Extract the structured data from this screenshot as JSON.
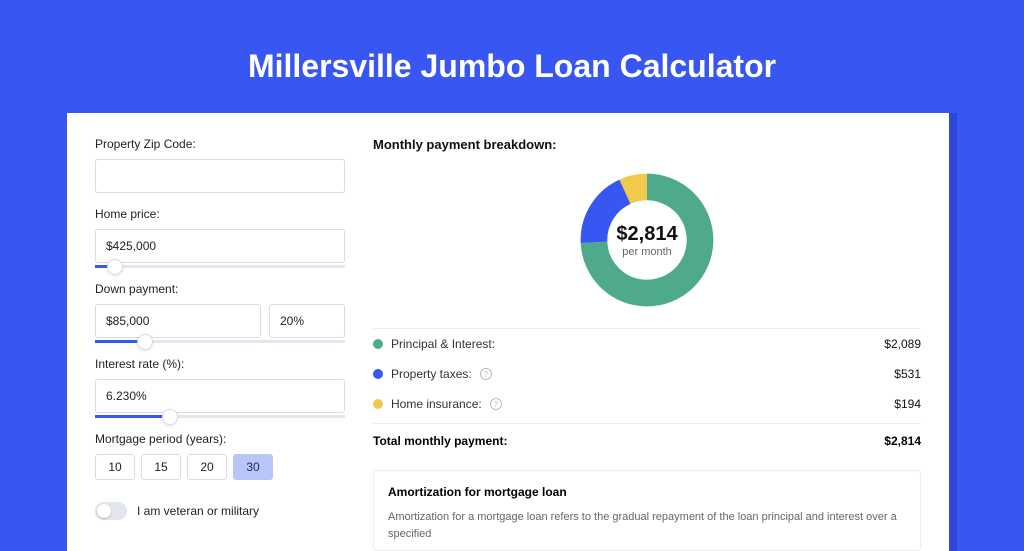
{
  "page": {
    "title": "Millersville Jumbo Loan Calculator",
    "background_color": "#3857f2",
    "shadow_color": "#2d48d8",
    "card_background": "#ffffff"
  },
  "form": {
    "zip": {
      "label": "Property Zip Code:",
      "value": ""
    },
    "home_price": {
      "label": "Home price:",
      "value": "$425,000",
      "slider_pct": 8
    },
    "down_payment": {
      "label": "Down payment:",
      "amount": "$85,000",
      "pct": "20%",
      "slider_pct": 20
    },
    "interest_rate": {
      "label": "Interest rate (%):",
      "value": "6.230%",
      "slider_pct": 30
    },
    "mortgage_period": {
      "label": "Mortgage period (years):",
      "options": [
        "10",
        "15",
        "20",
        "30"
      ],
      "selected": "30"
    },
    "veteran": {
      "label": "I am veteran or military",
      "on": false
    }
  },
  "breakdown": {
    "title": "Monthly payment breakdown:",
    "donut": {
      "amount": "$2,814",
      "sub": "per month",
      "slices": [
        {
          "key": "principal_interest",
          "color": "#4fa98b",
          "pct": 74.2
        },
        {
          "key": "property_taxes",
          "color": "#3857f2",
          "pct": 18.9
        },
        {
          "key": "home_insurance",
          "color": "#f2c94c",
          "pct": 6.9
        }
      ]
    },
    "legend": [
      {
        "label": "Principal & Interest:",
        "color": "#4fa98b",
        "value": "$2,089",
        "info": false
      },
      {
        "label": "Property taxes:",
        "color": "#3857f2",
        "value": "$531",
        "info": true
      },
      {
        "label": "Home insurance:",
        "color": "#f2c94c",
        "value": "$194",
        "info": true
      }
    ],
    "total": {
      "label": "Total monthly payment:",
      "value": "$2,814"
    }
  },
  "amortization": {
    "title": "Amortization for mortgage loan",
    "text": "Amortization for a mortgage loan refers to the gradual repayment of the loan principal and interest over a specified"
  }
}
